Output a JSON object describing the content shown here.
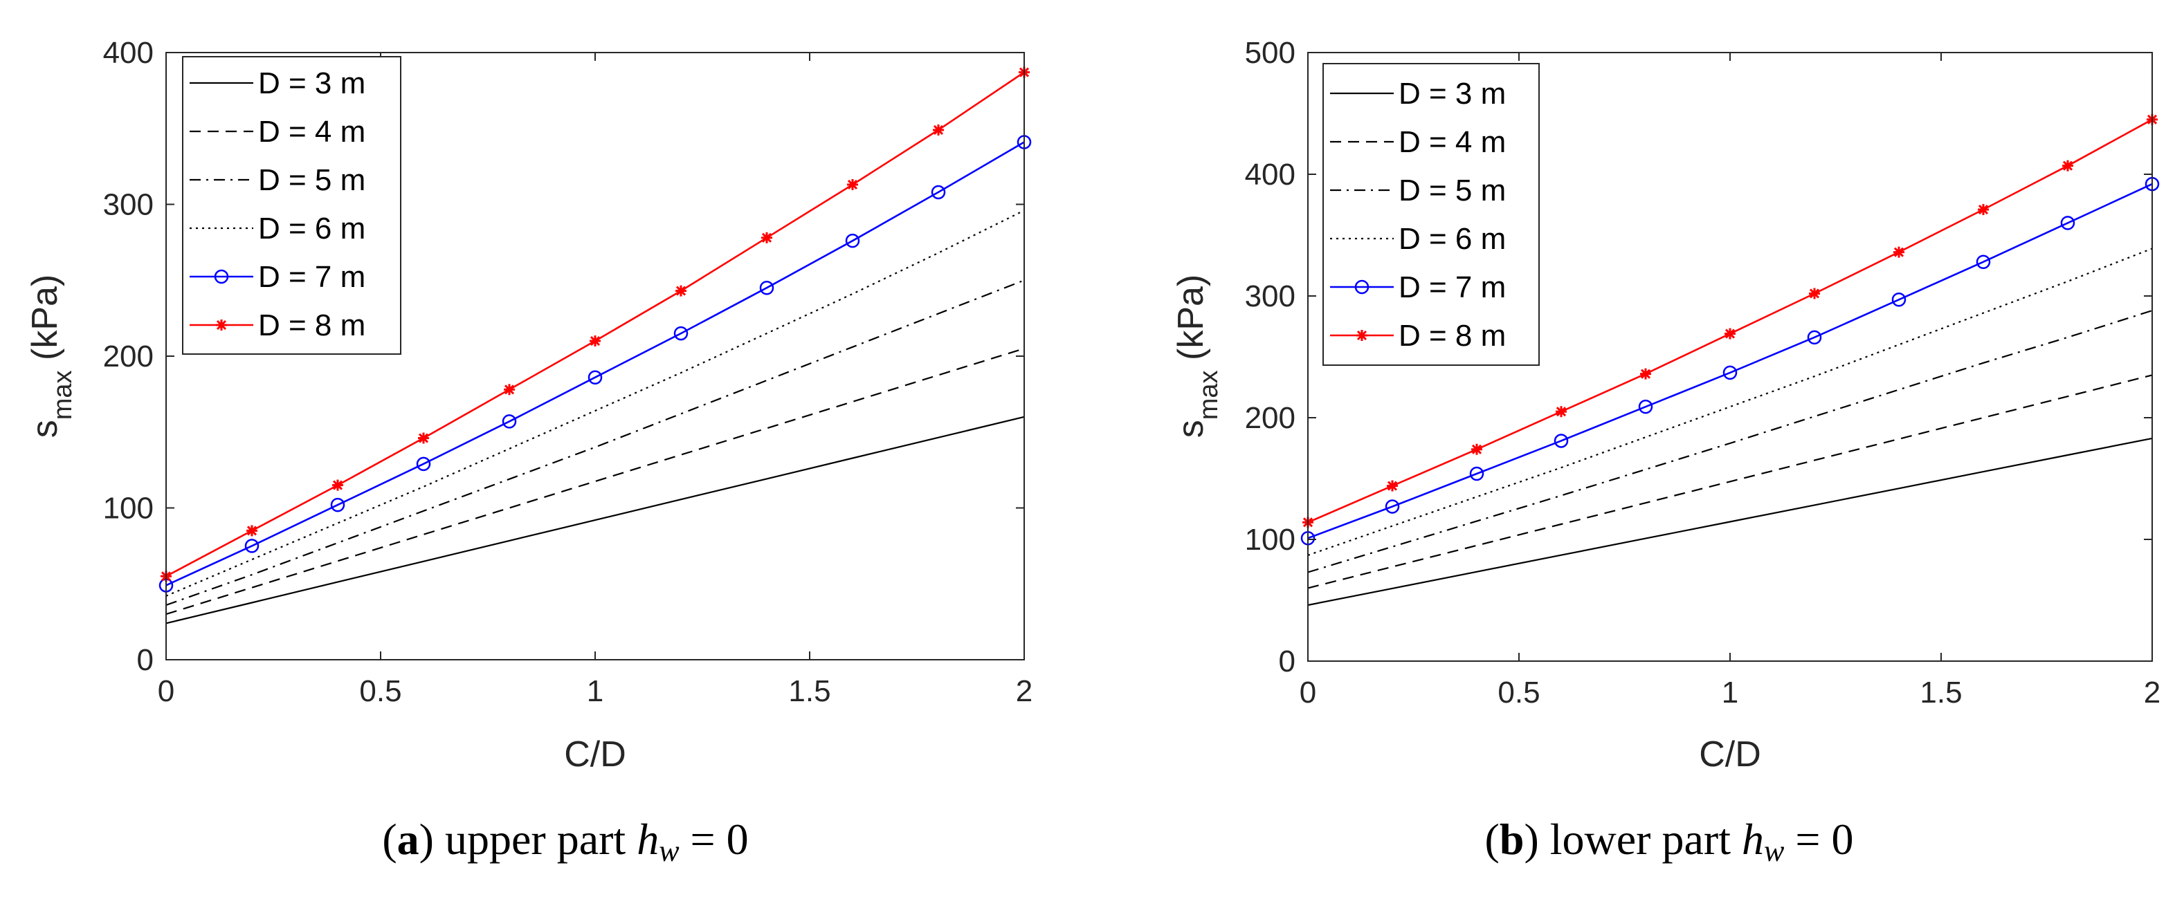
{
  "chart_data": [
    {
      "type": "line",
      "id": "a",
      "caption": {
        "open": "(",
        "letter": "a",
        "rest": ") upper part ",
        "var": "h",
        "sub": "w",
        "eq": " = 0"
      },
      "xlabel": "C/D",
      "ylabel": {
        "main": "s",
        "sub": "max",
        "unit": " (kPa)"
      },
      "xlim": [
        0,
        2
      ],
      "ylim": [
        0,
        400
      ],
      "xticks": [
        0,
        0.5,
        1,
        1.5,
        2
      ],
      "xtick_labels": [
        "0",
        "0.5",
        "1",
        "1.5",
        "2"
      ],
      "yticks": [
        0,
        100,
        200,
        300,
        400
      ],
      "ytick_labels": [
        "0",
        "100",
        "200",
        "300",
        "400"
      ],
      "grid": false,
      "legend": "top-left",
      "x": [
        0,
        0.2,
        0.4,
        0.6,
        0.8,
        1.0,
        1.2,
        1.4,
        1.6,
        1.8,
        2.0
      ],
      "series": [
        {
          "name": "D = 3 m",
          "style": "solid",
          "color": "#000000",
          "marker": "none",
          "values": [
            24,
            37.6,
            51.2,
            64.8,
            78.4,
            92,
            105.6,
            119.2,
            132.8,
            146.4,
            160
          ]
        },
        {
          "name": "D = 4 m",
          "style": "dashed",
          "color": "#000000",
          "marker": "none",
          "values": [
            30,
            47.5,
            65,
            82.5,
            100,
            117.5,
            135,
            152.5,
            170,
            187.5,
            205
          ]
        },
        {
          "name": "D = 5 m",
          "style": "dashdot",
          "color": "#000000",
          "marker": "none",
          "values": [
            36,
            56,
            77,
            98,
            119,
            140,
            162,
            184,
            206,
            228,
            250
          ]
        },
        {
          "name": "D = 6 m",
          "style": "dotted",
          "color": "#000000",
          "marker": "none",
          "values": [
            42,
            66,
            90,
            114,
            139,
            164,
            189,
            215,
            241,
            268,
            296
          ]
        },
        {
          "name": "D = 7 m",
          "style": "solid",
          "color": "#0000ff",
          "marker": "circle",
          "values": [
            49,
            75,
            102,
            129,
            157,
            186,
            215,
            245,
            276,
            308,
            341
          ]
        },
        {
          "name": "D = 8 m",
          "style": "solid",
          "color": "#ff0000",
          "marker": "star",
          "values": [
            55,
            85,
            115,
            146,
            178,
            210,
            243,
            278,
            313,
            349,
            387
          ]
        }
      ]
    },
    {
      "type": "line",
      "id": "b",
      "caption": {
        "open": "(",
        "letter": "b",
        "rest": ") lower part ",
        "var": "h",
        "sub": "w",
        "eq": " = 0"
      },
      "xlabel": "C/D",
      "ylabel": {
        "main": "s",
        "sub": "max",
        "unit": " (kPa)"
      },
      "xlim": [
        0,
        2
      ],
      "ylim": [
        0,
        500
      ],
      "xticks": [
        0,
        0.5,
        1,
        1.5,
        2
      ],
      "xtick_labels": [
        "0",
        "0.5",
        "1",
        "1.5",
        "2"
      ],
      "yticks": [
        0,
        100,
        200,
        300,
        400,
        500
      ],
      "ytick_labels": [
        "0",
        "100",
        "200",
        "300",
        "400",
        "500"
      ],
      "grid": false,
      "legend": "top-left",
      "x": [
        0,
        0.2,
        0.4,
        0.6,
        0.8,
        1.0,
        1.2,
        1.4,
        1.6,
        1.8,
        2.0
      ],
      "series": [
        {
          "name": "D = 3 m",
          "style": "solid",
          "color": "#000000",
          "marker": "none",
          "values": [
            46,
            59.7,
            73.4,
            87.1,
            100.8,
            114.5,
            128.2,
            141.9,
            155.6,
            169.3,
            183
          ]
        },
        {
          "name": "D = 4 m",
          "style": "dashed",
          "color": "#000000",
          "marker": "none",
          "values": [
            60,
            77.5,
            95,
            112.5,
            130,
            147.5,
            165,
            182.5,
            200,
            217.5,
            235
          ]
        },
        {
          "name": "D = 5 m",
          "style": "dashdot",
          "color": "#000000",
          "marker": "none",
          "values": [
            73,
            94,
            115,
            136,
            157.5,
            179,
            201,
            223,
            245,
            266,
            288
          ]
        },
        {
          "name": "D = 6 m",
          "style": "dotted",
          "color": "#000000",
          "marker": "none",
          "values": [
            87,
            111,
            135,
            159,
            184,
            209,
            234,
            260,
            286,
            312,
            339
          ]
        },
        {
          "name": "D = 7 m",
          "style": "solid",
          "color": "#0000ff",
          "marker": "circle",
          "values": [
            101,
            127,
            154,
            181,
            209,
            237,
            266,
            297,
            328,
            360,
            392
          ]
        },
        {
          "name": "D = 8 m",
          "style": "solid",
          "color": "#ff0000",
          "marker": "star",
          "values": [
            114,
            144,
            174,
            205,
            236,
            269,
            302,
            336,
            371,
            407,
            445
          ]
        }
      ]
    }
  ]
}
